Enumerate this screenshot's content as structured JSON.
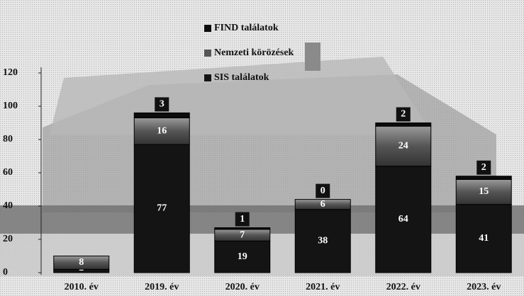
{
  "chart_data": {
    "type": "stacked_bar",
    "categories": [
      "2010. év",
      "2019. év",
      "2020. év",
      "2021. év",
      "2022. év",
      "2023. év"
    ],
    "series": [
      {
        "name": "SIS találatok",
        "color": "#141414",
        "values": [
          2,
          77,
          19,
          38,
          64,
          41
        ]
      },
      {
        "name": "Nemzeti körözések",
        "color": "#6a6a6a",
        "values": [
          8,
          16,
          7,
          6,
          24,
          15
        ]
      },
      {
        "name": "FIND találatok",
        "color": "#0c0c0c",
        "values": [
          null,
          3,
          1,
          0,
          2,
          2
        ]
      }
    ],
    "ylim": [
      0,
      120
    ],
    "yticks": [
      0,
      20,
      40,
      60,
      80,
      100,
      120
    ],
    "legend": "top"
  }
}
